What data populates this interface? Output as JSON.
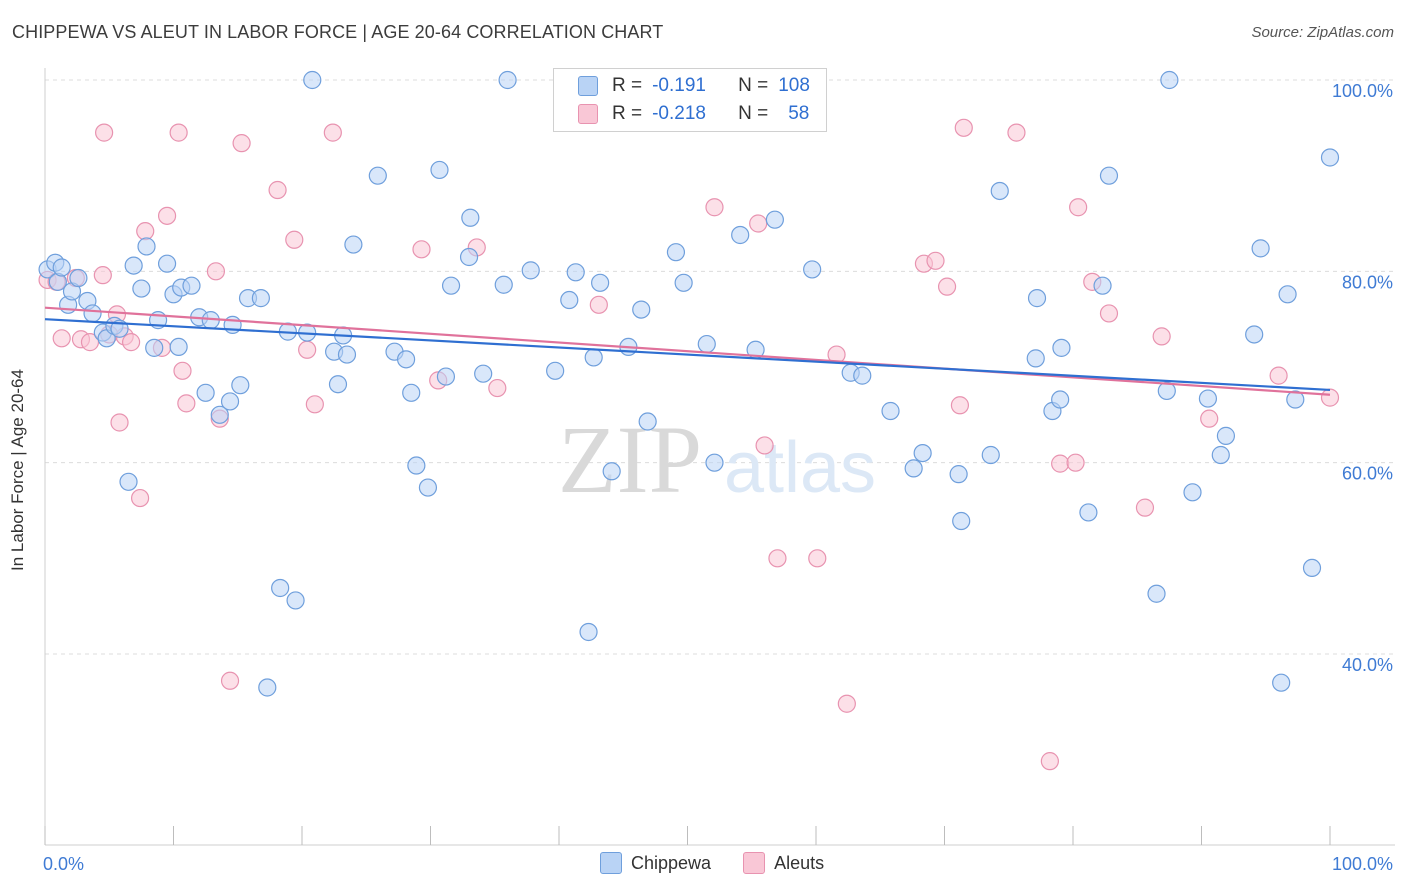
{
  "title": "CHIPPEWA VS ALEUT IN LABOR FORCE | AGE 20-64 CORRELATION CHART",
  "source": "Source: ZipAtlas.com",
  "watermark": {
    "zip": "ZIP",
    "atlas": "atlas"
  },
  "colors": {
    "chippewa_fill": "#b9d3f5",
    "chippewa_stroke": "#6f9fdc",
    "chippewa_line": "#2f6fd1",
    "aleut_fill": "#f9c7d6",
    "aleut_stroke": "#e893b0",
    "aleut_line": "#e0729b",
    "axis_text": "#3f7bd4",
    "grid": "#dcdcdc"
  },
  "legend": {
    "r_label": "R =",
    "n_label": "N =",
    "rows": [
      {
        "series": "Chippewa",
        "r": "-0.191",
        "n": "108"
      },
      {
        "series": "Aleuts",
        "r": "-0.218",
        "n": "58"
      }
    ]
  },
  "bottom_legend": [
    {
      "label": "Chippewa"
    },
    {
      "label": "Aleuts"
    }
  ],
  "chart_data": {
    "type": "scatter",
    "title": "CHIPPEWA VS ALEUT IN LABOR FORCE | AGE 20-64 CORRELATION CHART",
    "xlabel": "",
    "ylabel": "In Labor Force | Age 20-64",
    "xlim": [
      0,
      100
    ],
    "ylim": [
      20,
      102
    ],
    "x_tick_labels": [
      "0.0%",
      "100.0%"
    ],
    "y_ticks": [
      40,
      60,
      80,
      100
    ],
    "y_tick_labels": [
      "40.0%",
      "60.0%",
      "80.0%",
      "100.0%"
    ],
    "legend_position": "top-center",
    "series": [
      {
        "name": "Chippewa",
        "trend": {
          "x0": 0,
          "y0": 75.0,
          "x1": 100,
          "y1": 67.6
        },
        "points": [
          [
            0.2,
            80.2
          ],
          [
            0.8,
            80.9
          ],
          [
            1.0,
            78.9
          ],
          [
            1.3,
            80.4
          ],
          [
            1.8,
            76.5
          ],
          [
            2.1,
            77.9
          ],
          [
            2.6,
            79.3
          ],
          [
            3.3,
            76.9
          ],
          [
            3.7,
            75.6
          ],
          [
            4.5,
            73.6
          ],
          [
            4.8,
            73.0
          ],
          [
            5.4,
            74.3
          ],
          [
            5.8,
            74.0
          ],
          [
            6.5,
            58.0
          ],
          [
            6.9,
            80.6
          ],
          [
            7.5,
            78.2
          ],
          [
            7.9,
            82.6
          ],
          [
            8.5,
            72.0
          ],
          [
            8.8,
            74.9
          ],
          [
            9.5,
            80.8
          ],
          [
            10.0,
            77.6
          ],
          [
            10.4,
            72.1
          ],
          [
            10.6,
            78.3
          ],
          [
            11.4,
            78.5
          ],
          [
            12.0,
            75.2
          ],
          [
            12.5,
            67.3
          ],
          [
            12.9,
            74.9
          ],
          [
            13.6,
            65.0
          ],
          [
            14.4,
            66.4
          ],
          [
            14.6,
            74.4
          ],
          [
            15.2,
            68.1
          ],
          [
            15.8,
            77.2
          ],
          [
            16.8,
            77.2
          ],
          [
            17.3,
            36.5
          ],
          [
            18.3,
            46.9
          ],
          [
            18.9,
            73.7
          ],
          [
            19.5,
            45.6
          ],
          [
            20.4,
            73.6
          ],
          [
            20.8,
            100.0
          ],
          [
            22.5,
            71.6
          ],
          [
            22.8,
            68.2
          ],
          [
            23.2,
            73.3
          ],
          [
            23.5,
            71.3
          ],
          [
            24.0,
            82.8
          ],
          [
            25.9,
            90.0
          ],
          [
            27.2,
            71.6
          ],
          [
            28.1,
            70.8
          ],
          [
            28.5,
            67.3
          ],
          [
            28.9,
            59.7
          ],
          [
            29.8,
            57.4
          ],
          [
            30.7,
            90.6
          ],
          [
            31.2,
            69.0
          ],
          [
            31.6,
            78.5
          ],
          [
            33.0,
            81.5
          ],
          [
            33.1,
            85.6
          ],
          [
            34.1,
            69.3
          ],
          [
            35.7,
            78.6
          ],
          [
            36.0,
            100.0
          ],
          [
            37.8,
            80.1
          ],
          [
            39.7,
            69.6
          ],
          [
            40.8,
            77.0
          ],
          [
            41.3,
            79.9
          ],
          [
            42.7,
            71.0
          ],
          [
            42.3,
            42.3
          ],
          [
            43.2,
            78.8
          ],
          [
            44.1,
            59.1
          ],
          [
            45.4,
            72.1
          ],
          [
            46.4,
            76.0
          ],
          [
            46.9,
            64.3
          ],
          [
            49.1,
            82.0
          ],
          [
            49.7,
            78.8
          ],
          [
            51.5,
            72.4
          ],
          [
            52.1,
            60.0
          ],
          [
            54.1,
            83.8
          ],
          [
            55.3,
            71.8
          ],
          [
            56.8,
            85.4
          ],
          [
            59.7,
            80.2
          ],
          [
            62.7,
            69.4
          ],
          [
            63.6,
            69.1
          ],
          [
            65.8,
            65.4
          ],
          [
            67.6,
            59.4
          ],
          [
            68.3,
            61.0
          ],
          [
            71.1,
            58.8
          ],
          [
            71.3,
            53.9
          ],
          [
            73.6,
            60.8
          ],
          [
            74.3,
            88.4
          ],
          [
            77.1,
            70.9
          ],
          [
            77.2,
            77.2
          ],
          [
            78.4,
            65.4
          ],
          [
            79.0,
            66.6
          ],
          [
            79.1,
            72.0
          ],
          [
            81.2,
            54.8
          ],
          [
            82.3,
            78.5
          ],
          [
            82.8,
            90.0
          ],
          [
            86.5,
            46.3
          ],
          [
            87.3,
            67.5
          ],
          [
            87.5,
            100.0
          ],
          [
            89.3,
            56.9
          ],
          [
            90.5,
            66.7
          ],
          [
            91.5,
            60.8
          ],
          [
            91.9,
            62.8
          ],
          [
            94.1,
            73.4
          ],
          [
            94.6,
            82.4
          ],
          [
            96.2,
            37.0
          ],
          [
            96.7,
            77.6
          ],
          [
            97.3,
            66.6
          ],
          [
            98.6,
            49.0
          ],
          [
            100.0,
            91.9
          ]
        ]
      },
      {
        "name": "Aleuts",
        "trend": {
          "x0": 0,
          "y0": 76.2,
          "x1": 100,
          "y1": 67.1
        },
        "points": [
          [
            0.2,
            79.1
          ],
          [
            0.9,
            78.9
          ],
          [
            1.3,
            73.0
          ],
          [
            2.4,
            79.3
          ],
          [
            2.8,
            72.9
          ],
          [
            3.5,
            72.6
          ],
          [
            4.5,
            79.6
          ],
          [
            4.6,
            94.5
          ],
          [
            5.0,
            73.4
          ],
          [
            5.6,
            75.5
          ],
          [
            5.8,
            64.2
          ],
          [
            6.2,
            73.2
          ],
          [
            6.7,
            72.6
          ],
          [
            7.4,
            56.3
          ],
          [
            7.8,
            84.2
          ],
          [
            9.1,
            72.0
          ],
          [
            9.5,
            85.8
          ],
          [
            10.4,
            94.5
          ],
          [
            10.7,
            69.6
          ],
          [
            11.0,
            66.2
          ],
          [
            13.3,
            80.0
          ],
          [
            13.6,
            64.6
          ],
          [
            14.4,
            37.2
          ],
          [
            15.3,
            93.4
          ],
          [
            18.1,
            88.5
          ],
          [
            19.4,
            83.3
          ],
          [
            20.4,
            71.8
          ],
          [
            21.0,
            66.1
          ],
          [
            22.4,
            94.5
          ],
          [
            29.3,
            82.3
          ],
          [
            30.6,
            68.6
          ],
          [
            33.6,
            82.5
          ],
          [
            35.2,
            67.8
          ],
          [
            43.1,
            76.5
          ],
          [
            52.1,
            86.7
          ],
          [
            55.5,
            85.0
          ],
          [
            56.0,
            61.8
          ],
          [
            57.0,
            50.0
          ],
          [
            60.1,
            50.0
          ],
          [
            61.6,
            71.3
          ],
          [
            62.4,
            34.8
          ],
          [
            68.4,
            80.8
          ],
          [
            69.3,
            81.1
          ],
          [
            70.2,
            78.4
          ],
          [
            71.2,
            66.0
          ],
          [
            71.5,
            95.0
          ],
          [
            75.6,
            94.5
          ],
          [
            78.2,
            28.8
          ],
          [
            79.0,
            59.9
          ],
          [
            80.2,
            60.0
          ],
          [
            80.4,
            86.7
          ],
          [
            81.5,
            78.9
          ],
          [
            82.8,
            75.6
          ],
          [
            85.6,
            55.3
          ],
          [
            86.9,
            73.2
          ],
          [
            90.6,
            64.6
          ],
          [
            96.0,
            69.1
          ],
          [
            100.0,
            66.8
          ]
        ]
      }
    ]
  }
}
